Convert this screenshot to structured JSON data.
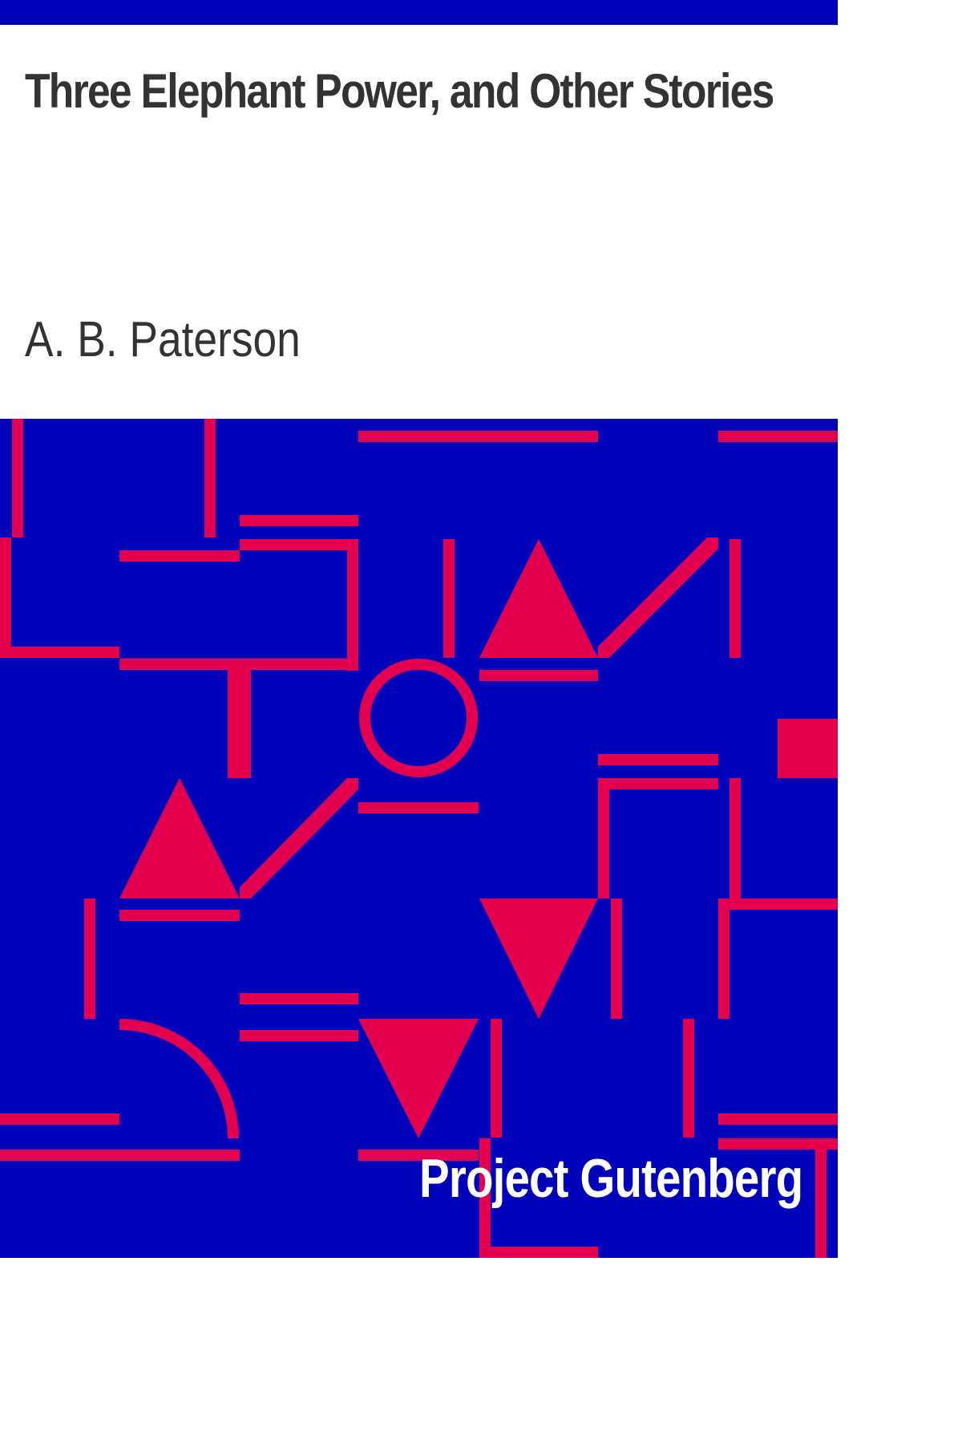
{
  "cover": {
    "title": "Three Elephant Power, and Other Stories",
    "author": "A. B. Paterson",
    "publisher": "Project Gutenberg"
  },
  "colors": {
    "background": "#ffffff",
    "accent_blue": "#0000bb",
    "accent_red": "#e3004f",
    "text_dark": "#333333",
    "text_light": "#ffffff"
  }
}
